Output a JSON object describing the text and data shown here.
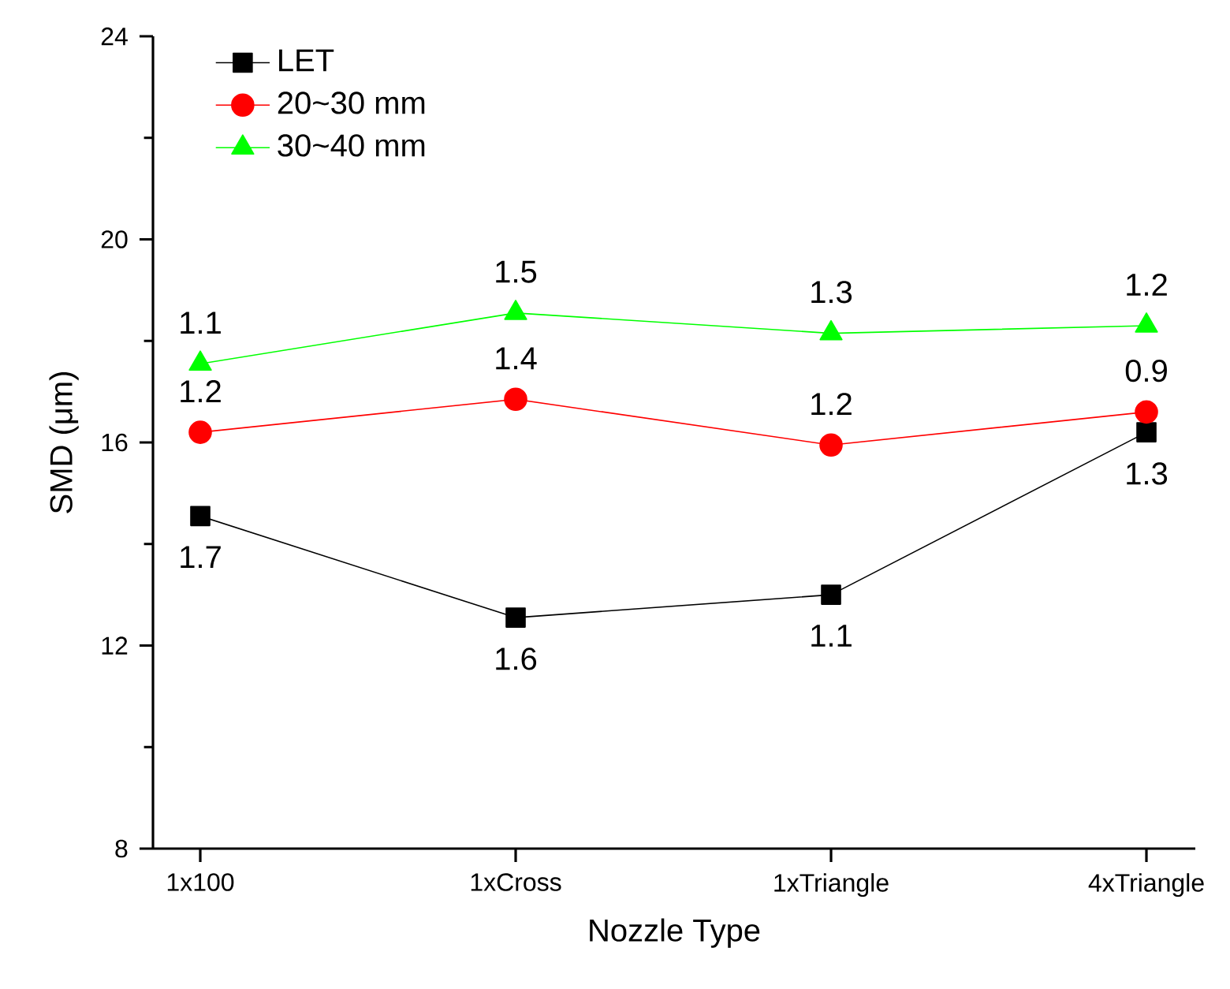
{
  "chart_data": {
    "type": "line",
    "xlabel": "Nozzle Type",
    "ylabel": "SMD (μm)",
    "categories": [
      "1x100",
      "1xCross",
      "1xTriangle",
      "4xTriangle"
    ],
    "ylim": [
      8,
      24
    ],
    "yticks": [
      8,
      12,
      16,
      20,
      24
    ],
    "grid": false,
    "legend": "top left",
    "series": [
      {
        "name": "LET",
        "color": "#000000",
        "marker": "square",
        "values": [
          14.55,
          12.55,
          13.0,
          16.2
        ]
      },
      {
        "name": "20~30 mm",
        "color": "#ff0000",
        "marker": "circle",
        "values": [
          16.2,
          16.85,
          15.95,
          16.6
        ]
      },
      {
        "name": "30~40 mm",
        "color": "#00ff00",
        "marker": "triangle",
        "values": [
          17.55,
          18.55,
          18.15,
          18.3
        ]
      }
    ],
    "annotations": [
      "1.7",
      "1.6",
      "1.1",
      "1.3",
      "1.2",
      "1.4",
      "1.2",
      "0.9",
      "1.1",
      "1.5",
      "1.3",
      "1.2"
    ]
  }
}
